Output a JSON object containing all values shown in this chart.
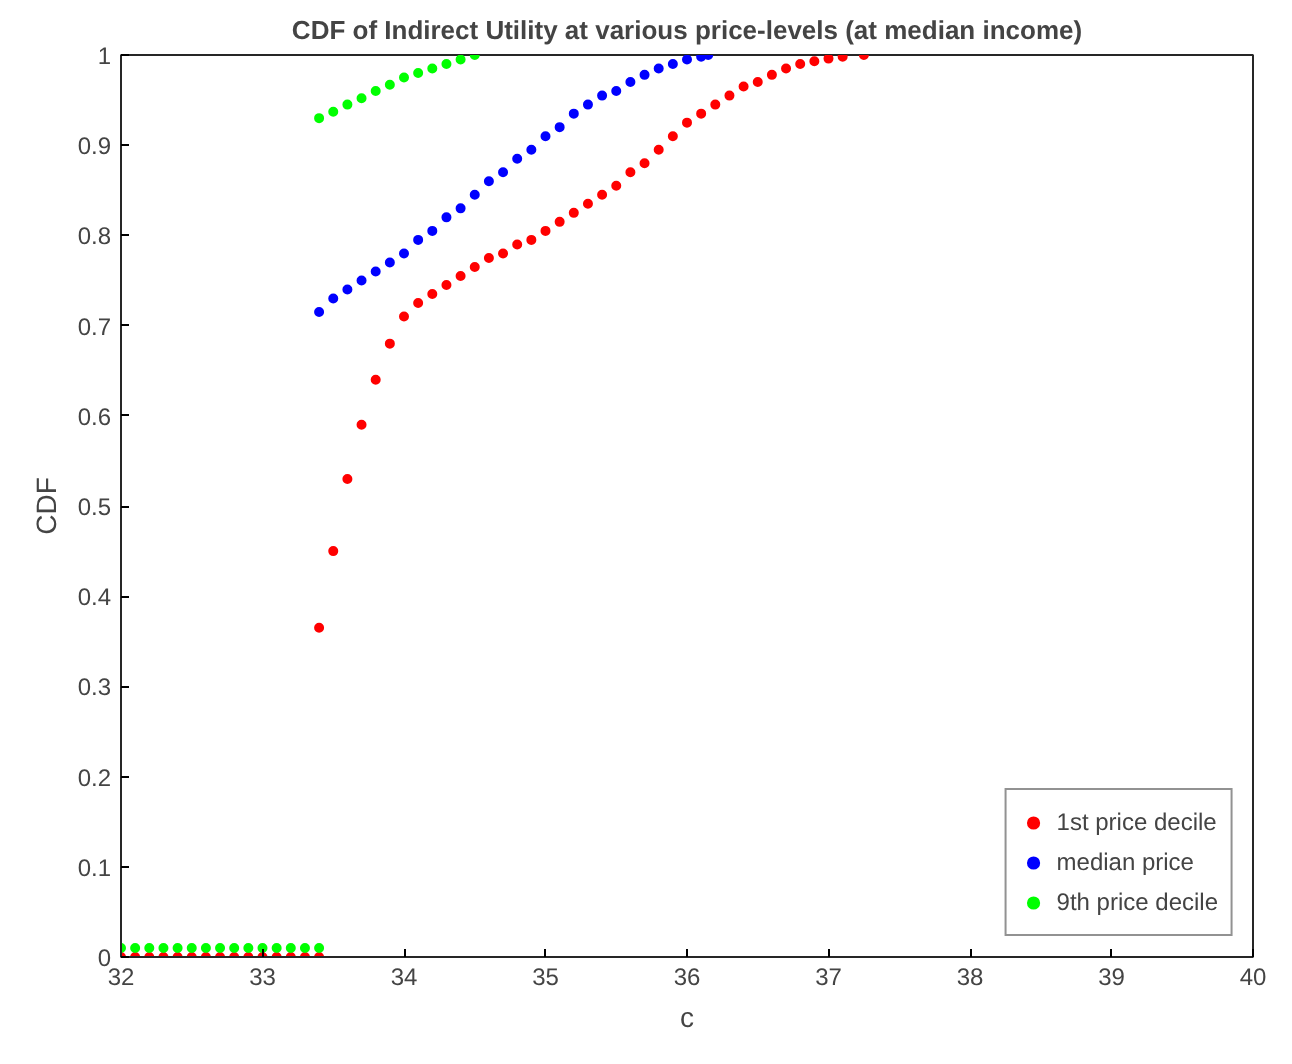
{
  "chart_data": {
    "type": "scatter",
    "title": "CDF of Indirect Utility at various price-levels (at median income)",
    "xlabel": "c",
    "ylabel": "CDF",
    "xlim": [
      32,
      40
    ],
    "ylim": [
      0,
      1
    ],
    "xticks": [
      32,
      33,
      34,
      35,
      36,
      37,
      38,
      39,
      40
    ],
    "yticks": [
      0,
      0.1,
      0.2,
      0.3,
      0.4,
      0.5,
      0.6,
      0.7,
      0.8,
      0.9,
      1
    ],
    "grid": false,
    "legend": "bottom right",
    "marker": "circle",
    "series": [
      {
        "name": "1st price decile",
        "color": "#ff0000",
        "x": [
          32,
          32.1,
          32.2,
          32.3,
          32.4,
          32.5,
          32.6,
          32.7,
          32.8,
          32.9,
          33,
          33.1,
          33.2,
          33.3,
          33.4,
          33.4,
          33.5,
          33.6,
          33.7,
          33.8,
          33.9,
          34.0,
          34.1,
          34.2,
          34.3,
          34.4,
          34.5,
          34.6,
          34.7,
          34.8,
          34.9,
          35.0,
          35.1,
          35.2,
          35.3,
          35.4,
          35.5,
          35.6,
          35.7,
          35.8,
          35.9,
          36.0,
          36.1,
          36.2,
          36.3,
          36.4,
          36.5,
          36.6,
          36.7,
          36.8,
          36.9,
          37.0,
          37.1,
          37.25
        ],
        "values": [
          0,
          0,
          0,
          0,
          0,
          0,
          0,
          0,
          0,
          0,
          0,
          0,
          0,
          0,
          0,
          0.365,
          0.45,
          0.53,
          0.59,
          0.64,
          0.68,
          0.71,
          0.725,
          0.735,
          0.745,
          0.755,
          0.765,
          0.775,
          0.78,
          0.79,
          0.795,
          0.805,
          0.815,
          0.825,
          0.835,
          0.845,
          0.855,
          0.87,
          0.88,
          0.895,
          0.91,
          0.925,
          0.935,
          0.945,
          0.955,
          0.965,
          0.97,
          0.978,
          0.985,
          0.99,
          0.993,
          0.996,
          0.998,
          1
        ]
      },
      {
        "name": "median price",
        "color": "#0000ff",
        "x": [
          33.4,
          33.5,
          33.6,
          33.7,
          33.8,
          33.9,
          34.0,
          34.1,
          34.2,
          34.3,
          34.4,
          34.5,
          34.6,
          34.7,
          34.8,
          34.9,
          35.0,
          35.1,
          35.2,
          35.3,
          35.4,
          35.5,
          35.6,
          35.7,
          35.8,
          35.9,
          36.0,
          36.1,
          36.15
        ],
        "values": [
          0.715,
          0.73,
          0.74,
          0.75,
          0.76,
          0.77,
          0.78,
          0.795,
          0.805,
          0.82,
          0.83,
          0.845,
          0.86,
          0.87,
          0.885,
          0.895,
          0.91,
          0.92,
          0.935,
          0.945,
          0.955,
          0.96,
          0.97,
          0.978,
          0.985,
          0.99,
          0.995,
          0.998,
          1
        ]
      },
      {
        "name": "9th price decile",
        "color": "#00ff00",
        "x": [
          32,
          32.1,
          32.2,
          32.3,
          32.4,
          32.5,
          32.6,
          32.7,
          32.8,
          32.9,
          33,
          33.1,
          33.2,
          33.3,
          33.4,
          33.4,
          33.5,
          33.6,
          33.7,
          33.8,
          33.9,
          34.0,
          34.1,
          34.2,
          34.3,
          34.4,
          34.5
        ],
        "values": [
          0.01,
          0.01,
          0.01,
          0.01,
          0.01,
          0.01,
          0.01,
          0.01,
          0.01,
          0.01,
          0.01,
          0.01,
          0.01,
          0.01,
          0.01,
          0.93,
          0.937,
          0.945,
          0.952,
          0.96,
          0.967,
          0.975,
          0.98,
          0.985,
          0.99,
          0.995,
          1
        ]
      }
    ]
  }
}
